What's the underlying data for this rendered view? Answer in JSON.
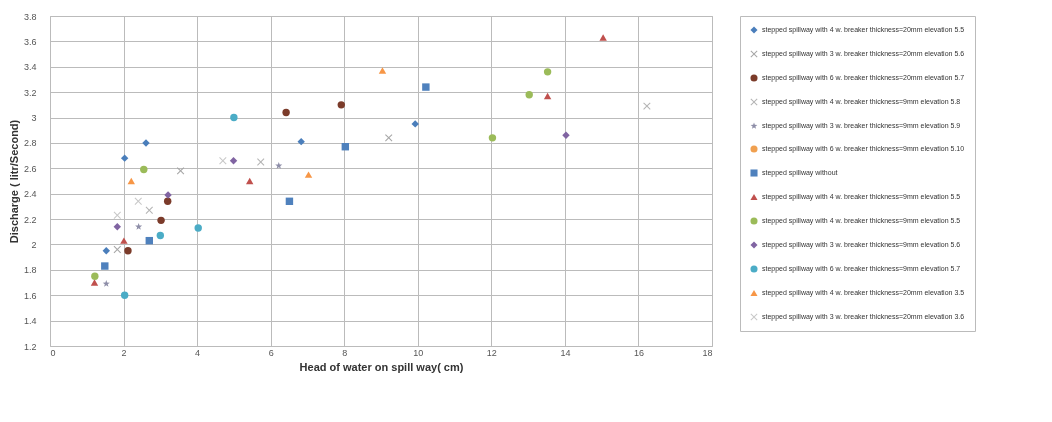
{
  "chart_data": {
    "type": "scatter",
    "xlabel": "Head of water on spill way( cm)",
    "ylabel": "Discharge ( litr/Second)",
    "xlim": [
      0,
      18
    ],
    "xticks": [
      0,
      2,
      4,
      6,
      8,
      10,
      12,
      14,
      16,
      18
    ],
    "ylim": [
      1.2,
      3.8
    ],
    "yticks": [
      1.2,
      1.4,
      1.6,
      1.8,
      2,
      2.2,
      2.4,
      2.6,
      2.8,
      3,
      3.2,
      3.4,
      3.6,
      3.8
    ],
    "grid": true,
    "legend": "right",
    "series": [
      {
        "name": "stepped spillway with 4 w. breaker thickness=20mm elevation 5.5",
        "color": "#4a7ebb",
        "marker": "diamond",
        "x": [
          1.53,
          2.03,
          2.61,
          6.83,
          9.93
        ],
        "values": [
          1.95,
          2.68,
          2.8,
          2.81,
          2.95
        ]
      },
      {
        "name": "stepped spillway with 3 w. breaker thickness=20mm elevation 5.6",
        "color": "#a6a6a6",
        "marker": "cross",
        "x": [
          1.83,
          3.55,
          9.21
        ],
        "values": [
          1.96,
          2.58,
          2.84
        ]
      },
      {
        "name": "stepped spillway with 6 w. breaker thickness=20mm elevation 5.7",
        "color": "#7b3b2a",
        "marker": "circle",
        "x": [
          2.12,
          3.02,
          3.2,
          6.42,
          7.92
        ],
        "values": [
          1.95,
          2.19,
          2.34,
          3.04,
          3.1
        ]
      },
      {
        "name": "stepped spillway with 4 w. breaker thickness=9mm elevation 5.8",
        "color": "#b4b4b4",
        "marker": "cross",
        "x": [
          2.7,
          5.73,
          16.23
        ],
        "values": [
          2.27,
          2.65,
          3.09
        ]
      },
      {
        "name": "stepped spillway with 3 w. breaker thickness=9mm elevation 5.9",
        "color": "#8e8ea8",
        "marker": "star",
        "x": [
          1.53,
          2.41,
          6.22
        ],
        "values": [
          1.69,
          2.14,
          2.62
        ]
      },
      {
        "name": "stepped spillway with 6 w. breaker thickness=9mm elevation 5.10",
        "color": "#f0a050",
        "marker": "circle"
      },
      {
        "name": "stepped spillway without",
        "color": "#4f81bd",
        "marker": "square",
        "x": [
          1.49,
          2.7,
          6.51,
          8.03,
          10.22
        ],
        "values": [
          1.83,
          2.03,
          2.34,
          2.77,
          3.24
        ]
      },
      {
        "name": "stepped spillway with 4 w. breaker thickness=9mm elevation 5.5",
        "color": "#c0504d",
        "marker": "triangle",
        "x": [
          1.21,
          2.01,
          5.43,
          13.53,
          15.04
        ],
        "values": [
          1.7,
          2.03,
          2.5,
          3.17,
          3.63
        ]
      },
      {
        "name": "stepped spillway with 4 w. breaker thickness=9mm elevation 5.5",
        "color": "#9bbb59",
        "marker": "circle",
        "x": [
          1.22,
          2.55,
          12.03,
          13.03,
          13.53
        ],
        "values": [
          1.75,
          2.59,
          2.84,
          3.18,
          3.36
        ]
      },
      {
        "name": "stepped spillway with 3 w. breaker thickness=9mm elevation 5.6",
        "color": "#8064a2",
        "marker": "diamond",
        "x": [
          1.83,
          3.21,
          4.99,
          14.03
        ],
        "values": [
          2.14,
          2.39,
          2.66,
          2.86
        ]
      },
      {
        "name": "stepped spillway with 6 w. breaker thickness=9mm elevation 5.7",
        "color": "#4bacc6",
        "marker": "circle",
        "x": [
          2.03,
          3,
          4.03,
          5
        ],
        "values": [
          1.6,
          2.07,
          2.13,
          3
        ]
      },
      {
        "name": "stepped spillway with 4 w. breaker thickness=20mm elevation 3.5",
        "color": "#f79646",
        "marker": "triangle",
        "x": [
          2.21,
          7.03,
          9.04
        ],
        "values": [
          2.5,
          2.55,
          3.37
        ]
      },
      {
        "name": "stepped spillway with 3 w. breaker thickness=20mm elevation 3.6",
        "color": "#c8c8c8",
        "marker": "cross",
        "x": [
          1.83,
          2.4,
          4.7
        ],
        "values": [
          2.23,
          2.34,
          2.66
        ]
      }
    ]
  }
}
